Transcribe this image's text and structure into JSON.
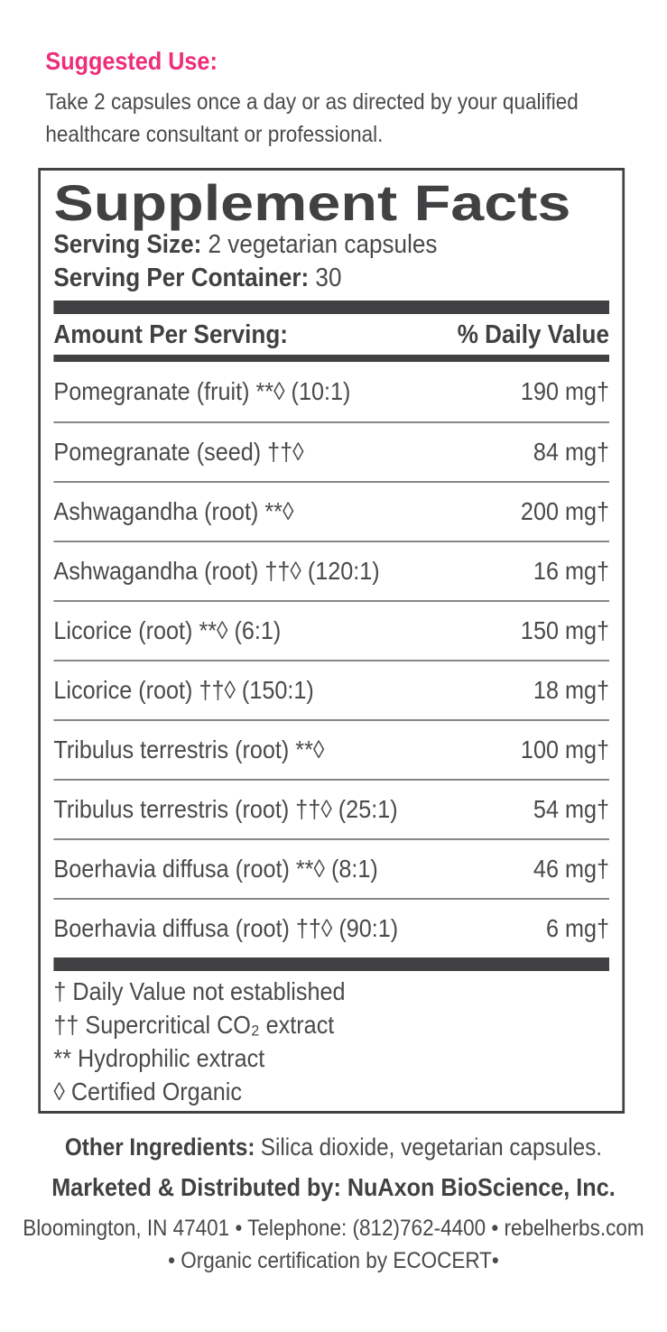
{
  "suggested_use": {
    "heading": "Suggested Use:",
    "body": "Take 2 capsules once a day or as directed by your qualified healthcare consultant or professional."
  },
  "supplement_facts": {
    "title": "Supplement Facts",
    "serving_size_label": "Serving Size:",
    "serving_size_value": "2 vegetarian capsules",
    "servings_per_container_label": "Serving Per Container:",
    "servings_per_container_value": "30",
    "header": {
      "amount_label": "Amount Per Serving:",
      "daily_value_label": "% Daily Value"
    },
    "rows": [
      {
        "name": "Pomegranate (fruit) **◊ (10:1)",
        "amount": "190 mg†"
      },
      {
        "name": "Pomegranate (seed) ††◊",
        "amount": "84 mg†"
      },
      {
        "name": "Ashwagandha (root) **◊",
        "amount": "200 mg†"
      },
      {
        "name": "Ashwagandha (root) ††◊ (120:1)",
        "amount": "16 mg†"
      },
      {
        "name": "Licorice (root) **◊ (6:1)",
        "amount": "150 mg†"
      },
      {
        "name": "Licorice (root) ††◊ (150:1)",
        "amount": "18 mg†"
      },
      {
        "name": "Tribulus terrestris (root) **◊",
        "amount": "100 mg†"
      },
      {
        "name": "Tribulus terrestris (root) ††◊ (25:1)",
        "amount": "54 mg†"
      },
      {
        "name": "Boerhavia diffusa (root) **◊ (8:1)",
        "amount": "46 mg†"
      },
      {
        "name": "Boerhavia diffusa (root) ††◊ (90:1)",
        "amount": "6 mg†"
      }
    ],
    "footnotes": [
      "† Daily Value not established",
      "†† Supercritical CO₂ extract",
      "** Hydrophilic extract",
      "◊ Certified Organic"
    ]
  },
  "other_ingredients": {
    "label": "Other Ingredients:",
    "value": "Silica dioxide, vegetarian capsules."
  },
  "distribution": {
    "marketed_line": "Marketed & Distributed by: NuAxon BioScience, Inc.",
    "address_line": "Bloomington, IN 47401 • Telephone: (812)762-4400 • rebelherbs.com",
    "certification_line": "• Organic certification by ECOCERT•"
  },
  "colors": {
    "accent_pink": "#EC2E7B",
    "dark": "#414042",
    "body_text": "#4A4A4D",
    "separator": "#85878A"
  }
}
